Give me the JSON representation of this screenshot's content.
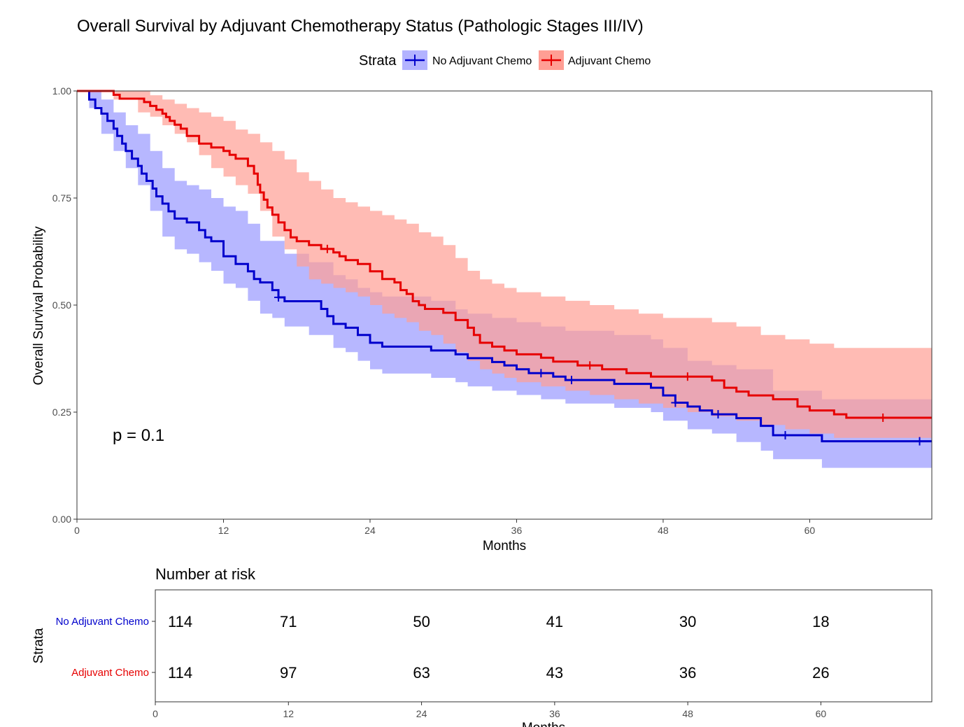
{
  "chart_data": {
    "type": "line",
    "title": "Overall Survival by Adjuvant Chemotherapy Status (Pathologic Stages III/IV)",
    "legend": {
      "title": "Strata",
      "position": "top"
    },
    "xlabel": "Months",
    "ylabel": "Overall Survival Probability",
    "xlim": [
      0,
      70
    ],
    "ylim": [
      0,
      1
    ],
    "x_ticks": [
      "0",
      "12",
      "24",
      "36",
      "48",
      "60"
    ],
    "y_ticks": [
      "0.00",
      "0.25",
      "0.50",
      "0.75",
      "1.00"
    ],
    "grid": false,
    "annotation": "p = 0.1",
    "series": [
      {
        "name": "No Adjuvant Chemo",
        "color": "#0000CC",
        "ci_color": "#B3B3FF",
        "points": [
          [
            0,
            1.0
          ],
          [
            1,
            0.98
          ],
          [
            1.5,
            0.96
          ],
          [
            2,
            0.947
          ],
          [
            2.5,
            0.93
          ],
          [
            3,
            0.912
          ],
          [
            3.3,
            0.895
          ],
          [
            3.7,
            0.877
          ],
          [
            4,
            0.86
          ],
          [
            4.5,
            0.842
          ],
          [
            5,
            0.825
          ],
          [
            5.3,
            0.807
          ],
          [
            5.7,
            0.79
          ],
          [
            6.2,
            0.772
          ],
          [
            6.5,
            0.754
          ],
          [
            7,
            0.737
          ],
          [
            7.5,
            0.719
          ],
          [
            8,
            0.702
          ],
          [
            9,
            0.693
          ],
          [
            10,
            0.675
          ],
          [
            10.5,
            0.658
          ],
          [
            11,
            0.649
          ],
          [
            12,
            0.614
          ],
          [
            13,
            0.596
          ],
          [
            14,
            0.579
          ],
          [
            14.5,
            0.561
          ],
          [
            15,
            0.553
          ],
          [
            16,
            0.535
          ],
          [
            16.5,
            0.518
          ],
          [
            17,
            0.509
          ],
          [
            20,
            0.491
          ],
          [
            20.5,
            0.474
          ],
          [
            21,
            0.456
          ],
          [
            22,
            0.447
          ],
          [
            23,
            0.43
          ],
          [
            24,
            0.412
          ],
          [
            25,
            0.403
          ],
          [
            29,
            0.394
          ],
          [
            31,
            0.385
          ],
          [
            32,
            0.376
          ],
          [
            34,
            0.367
          ],
          [
            35,
            0.359
          ],
          [
            36,
            0.35
          ],
          [
            37,
            0.341
          ],
          [
            39,
            0.333
          ],
          [
            40,
            0.325
          ],
          [
            44,
            0.316
          ],
          [
            47,
            0.307
          ],
          [
            48,
            0.289
          ],
          [
            49,
            0.272
          ],
          [
            50,
            0.263
          ],
          [
            51,
            0.254
          ],
          [
            52,
            0.245
          ],
          [
            54,
            0.236
          ],
          [
            56,
            0.218
          ],
          [
            57,
            0.196
          ],
          [
            61,
            0.182
          ],
          [
            70,
            0.182
          ]
        ],
        "ci_upper": [
          [
            0,
            1.0
          ],
          [
            1,
            1.0
          ],
          [
            2,
            0.98
          ],
          [
            3,
            0.95
          ],
          [
            4,
            0.92
          ],
          [
            5,
            0.9
          ],
          [
            6,
            0.86
          ],
          [
            7,
            0.82
          ],
          [
            8,
            0.79
          ],
          [
            9,
            0.78
          ],
          [
            10,
            0.77
          ],
          [
            11,
            0.75
          ],
          [
            12,
            0.73
          ],
          [
            13,
            0.72
          ],
          [
            14,
            0.69
          ],
          [
            15,
            0.65
          ],
          [
            16,
            0.65
          ],
          [
            17,
            0.62
          ],
          [
            19,
            0.6
          ],
          [
            20,
            0.6
          ],
          [
            21,
            0.57
          ],
          [
            22,
            0.56
          ],
          [
            23,
            0.54
          ],
          [
            24,
            0.53
          ],
          [
            25,
            0.52
          ],
          [
            29,
            0.51
          ],
          [
            31,
            0.49
          ],
          [
            32,
            0.48
          ],
          [
            34,
            0.47
          ],
          [
            36,
            0.46
          ],
          [
            38,
            0.45
          ],
          [
            40,
            0.44
          ],
          [
            44,
            0.43
          ],
          [
            47,
            0.42
          ],
          [
            48,
            0.4
          ],
          [
            50,
            0.37
          ],
          [
            52,
            0.36
          ],
          [
            54,
            0.35
          ],
          [
            57,
            0.3
          ],
          [
            61,
            0.28
          ],
          [
            70,
            0.28
          ]
        ],
        "ci_lower": [
          [
            0,
            1.0
          ],
          [
            1,
            0.96
          ],
          [
            2,
            0.9
          ],
          [
            3,
            0.86
          ],
          [
            4,
            0.82
          ],
          [
            5,
            0.78
          ],
          [
            6,
            0.72
          ],
          [
            7,
            0.66
          ],
          [
            8,
            0.63
          ],
          [
            9,
            0.62
          ],
          [
            10,
            0.6
          ],
          [
            11,
            0.58
          ],
          [
            12,
            0.55
          ],
          [
            13,
            0.54
          ],
          [
            14,
            0.51
          ],
          [
            15,
            0.48
          ],
          [
            16,
            0.47
          ],
          [
            17,
            0.45
          ],
          [
            19,
            0.43
          ],
          [
            20,
            0.43
          ],
          [
            21,
            0.4
          ],
          [
            22,
            0.39
          ],
          [
            23,
            0.37
          ],
          [
            24,
            0.35
          ],
          [
            25,
            0.34
          ],
          [
            29,
            0.33
          ],
          [
            31,
            0.32
          ],
          [
            32,
            0.31
          ],
          [
            34,
            0.3
          ],
          [
            36,
            0.29
          ],
          [
            38,
            0.28
          ],
          [
            40,
            0.27
          ],
          [
            44,
            0.26
          ],
          [
            47,
            0.25
          ],
          [
            48,
            0.23
          ],
          [
            50,
            0.21
          ],
          [
            52,
            0.2
          ],
          [
            54,
            0.18
          ],
          [
            56,
            0.16
          ],
          [
            57,
            0.14
          ],
          [
            61,
            0.12
          ],
          [
            70,
            0.12
          ]
        ],
        "censor_x": [
          16.5,
          38,
          40.5,
          49,
          52.5,
          58,
          69
        ]
      },
      {
        "name": "Adjuvant Chemo",
        "color": "#E60000",
        "ci_color": "#FF9E94",
        "points": [
          [
            0,
            1.0
          ],
          [
            3,
            0.991
          ],
          [
            3.5,
            0.982
          ],
          [
            5.5,
            0.974
          ],
          [
            6,
            0.965
          ],
          [
            6.5,
            0.956
          ],
          [
            7,
            0.947
          ],
          [
            7.3,
            0.939
          ],
          [
            7.6,
            0.93
          ],
          [
            8,
            0.921
          ],
          [
            8.5,
            0.912
          ],
          [
            9,
            0.895
          ],
          [
            10,
            0.877
          ],
          [
            11,
            0.868
          ],
          [
            12,
            0.86
          ],
          [
            12.5,
            0.851
          ],
          [
            13,
            0.842
          ],
          [
            14,
            0.825
          ],
          [
            14.5,
            0.807
          ],
          [
            14.8,
            0.781
          ],
          [
            15,
            0.763
          ],
          [
            15.3,
            0.746
          ],
          [
            15.6,
            0.728
          ],
          [
            16,
            0.711
          ],
          [
            16.5,
            0.693
          ],
          [
            17,
            0.675
          ],
          [
            17.5,
            0.658
          ],
          [
            18,
            0.649
          ],
          [
            19,
            0.64
          ],
          [
            20,
            0.631
          ],
          [
            21,
            0.623
          ],
          [
            21.5,
            0.614
          ],
          [
            22,
            0.605
          ],
          [
            23,
            0.596
          ],
          [
            24,
            0.579
          ],
          [
            25,
            0.561
          ],
          [
            26,
            0.553
          ],
          [
            26.5,
            0.535
          ],
          [
            27,
            0.526
          ],
          [
            27.5,
            0.509
          ],
          [
            28,
            0.5
          ],
          [
            28.5,
            0.491
          ],
          [
            30,
            0.482
          ],
          [
            31,
            0.465
          ],
          [
            32,
            0.447
          ],
          [
            32.5,
            0.43
          ],
          [
            33,
            0.412
          ],
          [
            34,
            0.403
          ],
          [
            35,
            0.394
          ],
          [
            36,
            0.385
          ],
          [
            38,
            0.377
          ],
          [
            39,
            0.368
          ],
          [
            41,
            0.359
          ],
          [
            43,
            0.35
          ],
          [
            45,
            0.341
          ],
          [
            47,
            0.333
          ],
          [
            52,
            0.324
          ],
          [
            53,
            0.307
          ],
          [
            54,
            0.298
          ],
          [
            55,
            0.289
          ],
          [
            57,
            0.28
          ],
          [
            59,
            0.263
          ],
          [
            60,
            0.254
          ],
          [
            62,
            0.245
          ],
          [
            63,
            0.237
          ],
          [
            70,
            0.237
          ]
        ],
        "ci_upper": [
          [
            0,
            1.0
          ],
          [
            5,
            1.0
          ],
          [
            6,
            0.99
          ],
          [
            7,
            0.98
          ],
          [
            8,
            0.97
          ],
          [
            9,
            0.96
          ],
          [
            10,
            0.95
          ],
          [
            11,
            0.94
          ],
          [
            12,
            0.93
          ],
          [
            13,
            0.91
          ],
          [
            14,
            0.9
          ],
          [
            15,
            0.88
          ],
          [
            16,
            0.86
          ],
          [
            17,
            0.84
          ],
          [
            18,
            0.81
          ],
          [
            19,
            0.79
          ],
          [
            20,
            0.77
          ],
          [
            21,
            0.75
          ],
          [
            22,
            0.74
          ],
          [
            23,
            0.73
          ],
          [
            24,
            0.72
          ],
          [
            25,
            0.71
          ],
          [
            26,
            0.7
          ],
          [
            27,
            0.69
          ],
          [
            28,
            0.67
          ],
          [
            29,
            0.66
          ],
          [
            30,
            0.64
          ],
          [
            31,
            0.61
          ],
          [
            32,
            0.58
          ],
          [
            33,
            0.56
          ],
          [
            34,
            0.55
          ],
          [
            35,
            0.54
          ],
          [
            36,
            0.53
          ],
          [
            38,
            0.52
          ],
          [
            40,
            0.51
          ],
          [
            42,
            0.5
          ],
          [
            44,
            0.49
          ],
          [
            46,
            0.48
          ],
          [
            48,
            0.47
          ],
          [
            52,
            0.46
          ],
          [
            54,
            0.45
          ],
          [
            56,
            0.43
          ],
          [
            58,
            0.42
          ],
          [
            60,
            0.41
          ],
          [
            62,
            0.4
          ],
          [
            70,
            0.4
          ]
        ],
        "ci_lower": [
          [
            0,
            1.0
          ],
          [
            3,
            0.98
          ],
          [
            5,
            0.95
          ],
          [
            6,
            0.94
          ],
          [
            7,
            0.92
          ],
          [
            8,
            0.9
          ],
          [
            9,
            0.88
          ],
          [
            10,
            0.85
          ],
          [
            11,
            0.82
          ],
          [
            12,
            0.8
          ],
          [
            13,
            0.78
          ],
          [
            14,
            0.76
          ],
          [
            15,
            0.72
          ],
          [
            16,
            0.66
          ],
          [
            17,
            0.63
          ],
          [
            18,
            0.59
          ],
          [
            19,
            0.56
          ],
          [
            20,
            0.55
          ],
          [
            21,
            0.54
          ],
          [
            22,
            0.53
          ],
          [
            23,
            0.52
          ],
          [
            24,
            0.5
          ],
          [
            25,
            0.48
          ],
          [
            26,
            0.47
          ],
          [
            27,
            0.46
          ],
          [
            28,
            0.44
          ],
          [
            29,
            0.43
          ],
          [
            30,
            0.41
          ],
          [
            31,
            0.39
          ],
          [
            32,
            0.37
          ],
          [
            33,
            0.35
          ],
          [
            34,
            0.34
          ],
          [
            35,
            0.33
          ],
          [
            36,
            0.32
          ],
          [
            38,
            0.31
          ],
          [
            40,
            0.3
          ],
          [
            42,
            0.29
          ],
          [
            44,
            0.28
          ],
          [
            46,
            0.27
          ],
          [
            48,
            0.26
          ],
          [
            50,
            0.25
          ],
          [
            52,
            0.24
          ],
          [
            54,
            0.23
          ],
          [
            56,
            0.22
          ],
          [
            58,
            0.21
          ],
          [
            60,
            0.2
          ],
          [
            62,
            0.19
          ],
          [
            70,
            0.19
          ]
        ],
        "censor_x": [
          20.5,
          42,
          50,
          66
        ]
      }
    ]
  },
  "risk_table": {
    "title": "Number at risk",
    "y_title": "Strata",
    "x_title": "Months",
    "times": [
      "0",
      "12",
      "24",
      "36",
      "48",
      "60"
    ],
    "rows": [
      {
        "name": "No Adjuvant Chemo",
        "color": "#0000CC",
        "values": [
          "114",
          "71",
          "50",
          "41",
          "30",
          "18"
        ]
      },
      {
        "name": "Adjuvant Chemo",
        "color": "#E60000",
        "values": [
          "114",
          "97",
          "63",
          "43",
          "36",
          "26"
        ]
      }
    ]
  }
}
